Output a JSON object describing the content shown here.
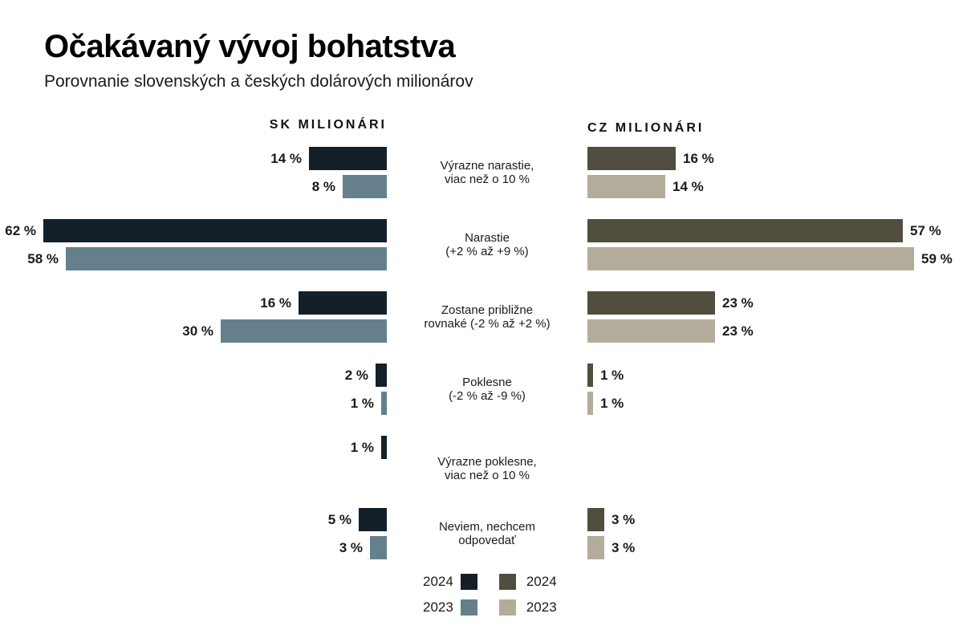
{
  "header": {
    "title": "Očakávaný vývoj bohatstva",
    "subtitle": "Porovnanie slovenských a českých dolárových milionárov"
  },
  "columns": {
    "sk_header": "SK MILIONÁRI",
    "cz_header": "CZ MILIONÁRI"
  },
  "legend": {
    "years": [
      "2024",
      "2023"
    ]
  },
  "chart_data": {
    "type": "bar",
    "orientation": "horizontal-diverging",
    "title": "Očakávaný vývoj bohatstva",
    "subtitle": "Porovnanie slovenských a českých dolárových milionárov",
    "unit": "%",
    "value_suffix": " %",
    "xlim": [
      0,
      62
    ],
    "grid": false,
    "left_group_label": "SK MILIONÁRI",
    "right_group_label": "CZ MILIONÁRI",
    "categories": [
      {
        "line1": "Výrazne narastie,",
        "line2": "viac než o 10 %"
      },
      {
        "line1": "Narastie",
        "line2": "(+2 % až +9 %)"
      },
      {
        "line1": "Zostane približne",
        "line2": "rovnaké (-2 % až +2 %)"
      },
      {
        "line1": "Poklesne",
        "line2": "(-2 % až -9 %)"
      },
      {
        "line1": "Výrazne poklesne,",
        "line2": "viac než o 10 %"
      },
      {
        "line1": "Neviem, nechcem",
        "line2": "odpovedať"
      }
    ],
    "series": [
      {
        "name": "SK 2024",
        "side": "left",
        "color": "#13202a",
        "values": [
          14,
          62,
          16,
          2,
          1,
          5
        ]
      },
      {
        "name": "SK 2023",
        "side": "left",
        "color": "#64808d",
        "values": [
          8,
          58,
          30,
          1,
          null,
          3
        ]
      },
      {
        "name": "CZ 2024",
        "side": "right",
        "color": "#514e3f",
        "values": [
          16,
          57,
          23,
          1,
          null,
          3
        ]
      },
      {
        "name": "CZ 2023",
        "side": "right",
        "color": "#b3ac9b",
        "values": [
          14,
          59,
          23,
          1,
          null,
          3
        ]
      }
    ]
  }
}
